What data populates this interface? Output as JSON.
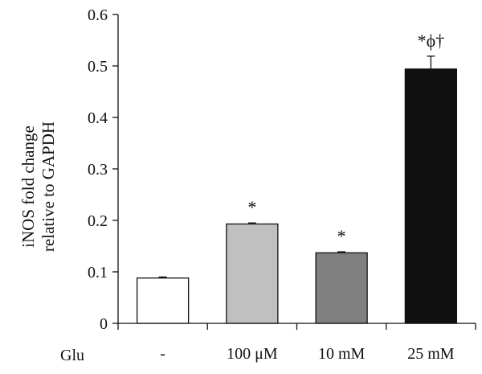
{
  "chart_data": {
    "type": "bar",
    "ylabel_lines": [
      "iNOS fold change",
      "relative to GAPDH"
    ],
    "xlabel": "Glu",
    "categories": [
      "-",
      "100 μM",
      "10 mM",
      "25 mM"
    ],
    "values": [
      0.088,
      0.193,
      0.137,
      0.494
    ],
    "errors": [
      0.002,
      0.002,
      0.002,
      0.025
    ],
    "annotations": [
      "",
      "*",
      "*",
      "*ϕ†"
    ],
    "bar_colors": [
      "#ffffff",
      "#c0c0c0",
      "#808080",
      "#101010"
    ],
    "ylim": [
      0,
      0.6
    ],
    "yticks": [
      0,
      0.1,
      0.2,
      0.3,
      0.4,
      0.5,
      0.6
    ],
    "grid": false,
    "legend": "none"
  }
}
